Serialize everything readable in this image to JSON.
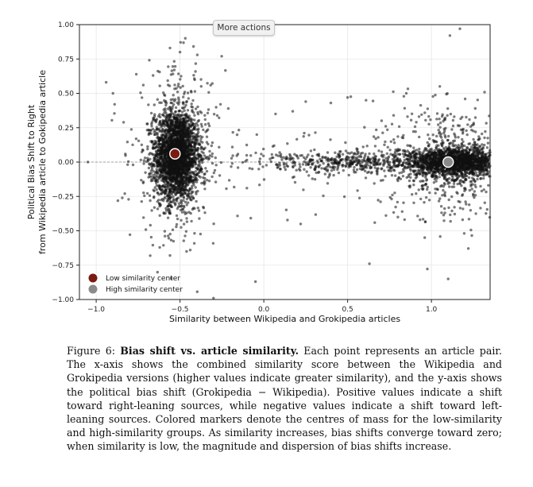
{
  "toolbar": {
    "more_actions_label": "More actions"
  },
  "chart_data": {
    "type": "scatter",
    "xlabel": "Similarity between Wikipedia and Grokipedia articles",
    "ylabel_line1": "Political Bias Shift to Right",
    "ylabel_line2": "from Wikipedia article to Gokipedia article",
    "xlim": [
      -1.1,
      1.35
    ],
    "ylim": [
      -1.0,
      1.0
    ],
    "x_ticks": [
      -1.0,
      -0.5,
      0.0,
      0.5,
      1.0
    ],
    "x_tick_labels": [
      "−1.0",
      "−0.5",
      "0.0",
      "0.5",
      "1.0"
    ],
    "y_ticks": [
      -1.0,
      -0.75,
      -0.5,
      -0.25,
      0.0,
      0.25,
      0.5,
      0.75,
      1.0
    ],
    "y_tick_labels": [
      "−1.00",
      "−0.75",
      "−0.50",
      "−0.25",
      "0.00",
      "0.25",
      "0.50",
      "0.75",
      "1.00"
    ],
    "grid": true,
    "zero_line": true,
    "legend_position": "lower-left",
    "series": [
      {
        "name": "Low similarity center",
        "marker": "center",
        "color": "#7a1a12",
        "x": [
          -0.53
        ],
        "y": [
          0.06
        ]
      },
      {
        "name": "High similarity center",
        "marker": "center",
        "color": "#8a8a8a",
        "x": [
          1.1
        ],
        "y": [
          0.0
        ]
      },
      {
        "marker": "points",
        "color": "#111111",
        "clusters": [
          {
            "x_center": -0.52,
            "x_spread": 0.065,
            "y_center": 0.05,
            "y_spread": 0.16,
            "count": 2600
          },
          {
            "x_center": -0.52,
            "x_spread": 0.14,
            "y_center": 0.05,
            "y_spread": 0.32,
            "count": 420
          },
          {
            "x_center": 1.15,
            "x_spread": 0.14,
            "y_center": 0.0,
            "y_spread": 0.05,
            "count": 1700
          },
          {
            "x_center": 1.1,
            "x_spread": 0.18,
            "y_center": 0.0,
            "y_spread": 0.22,
            "count": 550
          },
          {
            "x_center": 0.55,
            "x_spread": 0.35,
            "y_center": 0.0,
            "y_spread": 0.04,
            "count": 500
          },
          {
            "x_center": 0.3,
            "x_spread": 0.5,
            "y_center": 0.0,
            "y_spread": 0.2,
            "count": 120
          }
        ],
        "sample_points": [
          [
            -1.05,
            0.0
          ],
          [
            -0.9,
            0.5
          ],
          [
            -0.89,
            0.42
          ],
          [
            -0.78,
            -0.02
          ],
          [
            -0.56,
            0.83
          ],
          [
            -0.5,
            0.8
          ],
          [
            -0.56,
            -0.68
          ],
          [
            -0.33,
            0.28
          ],
          [
            0.07,
            0.35
          ],
          [
            0.22,
            -0.45
          ],
          [
            0.4,
            0.43
          ],
          [
            0.5,
            0.47
          ],
          [
            0.61,
            0.45
          ],
          [
            0.63,
            -0.74
          ],
          [
            0.96,
            -0.55
          ],
          [
            1.1,
            -0.85
          ],
          [
            1.17,
            0.97
          ],
          [
            1.11,
            0.92
          ],
          [
            -0.05,
            -0.87
          ],
          [
            -0.3,
            -0.99
          ],
          [
            0.25,
            0.44
          ],
          [
            0.8,
            -0.4
          ],
          [
            0.85,
            0.5
          ],
          [
            1.05,
            0.55
          ]
        ]
      }
    ],
    "legend": [
      {
        "label": "Low similarity center",
        "color": "#7a1a12"
      },
      {
        "label": "High similarity center",
        "color": "#8a8a8a"
      }
    ]
  },
  "caption": {
    "label": "Figure 6:",
    "title": "Bias shift vs. article similarity.",
    "text": "Each point represents an article pair. The x-axis shows the combined similarity score between the Wikipedia and Grokipedia versions (higher values indicate greater similarity), and the y-axis shows the political bias shift (Grokipedia − Wikipedia). Positive values indicate a shift toward right-leaning sources, while negative values indicate a shift toward left-leaning sources. Colored markers denote the centres of mass for the low-similarity and high-similarity groups. As similarity increases, bias shifts converge toward zero; when similarity is low, the magnitude and dispersion of bias shifts increase."
  }
}
